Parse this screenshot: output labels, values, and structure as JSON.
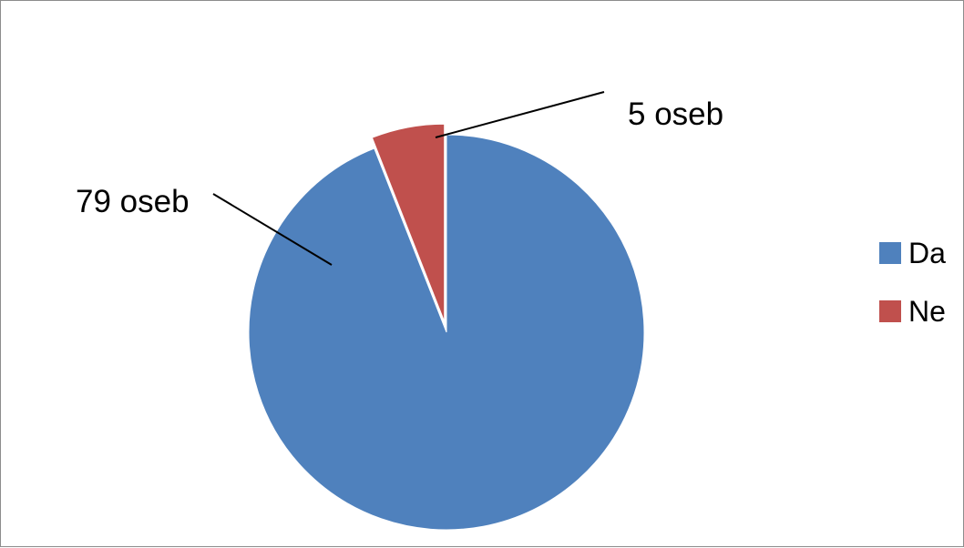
{
  "chart_data": {
    "type": "pie",
    "categories": [
      "Da",
      "Ne"
    ],
    "values": [
      79,
      5
    ],
    "data_labels": [
      "79 oseb",
      "5 oseb"
    ],
    "colors": [
      "#4f81bd",
      "#c0504d"
    ],
    "legend": {
      "position": "right",
      "entries": [
        "Da",
        "Ne"
      ]
    },
    "exploded_slice": "Ne",
    "title": ""
  }
}
